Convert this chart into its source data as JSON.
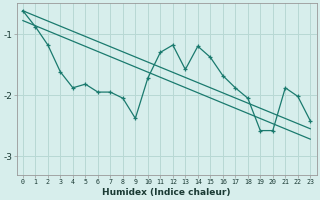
{
  "xlabel": "Humidex (Indice chaleur)",
  "ylabel": "",
  "background_color": "#d7eeec",
  "grid_color": "#b8d8d4",
  "line_color": "#1a7a6e",
  "xlim": [
    -0.5,
    23.5
  ],
  "ylim": [
    -3.3,
    -0.5
  ],
  "yticks": [
    -3,
    -2,
    -1
  ],
  "xticks": [
    0,
    1,
    2,
    3,
    4,
    5,
    6,
    7,
    8,
    9,
    10,
    11,
    12,
    13,
    14,
    15,
    16,
    17,
    18,
    19,
    20,
    21,
    22,
    23
  ],
  "x": [
    0,
    1,
    2,
    3,
    4,
    5,
    6,
    7,
    8,
    9,
    10,
    11,
    12,
    13,
    14,
    15,
    16,
    17,
    18,
    19,
    20,
    21,
    22,
    23
  ],
  "y_main": [
    -0.62,
    -0.88,
    -1.18,
    -1.62,
    -1.88,
    -1.82,
    -1.95,
    -1.95,
    -2.05,
    -2.38,
    -1.72,
    -1.3,
    -1.18,
    -1.58,
    -1.2,
    -1.38,
    -1.68,
    -1.88,
    -2.05,
    -2.58,
    -2.58,
    -1.88,
    -2.02,
    -2.42
  ],
  "trend1_x": [
    0,
    23
  ],
  "trend1_y": [
    -0.78,
    -2.72
  ],
  "trend2_x": [
    0,
    23
  ],
  "trend2_y": [
    -0.62,
    -2.55
  ]
}
